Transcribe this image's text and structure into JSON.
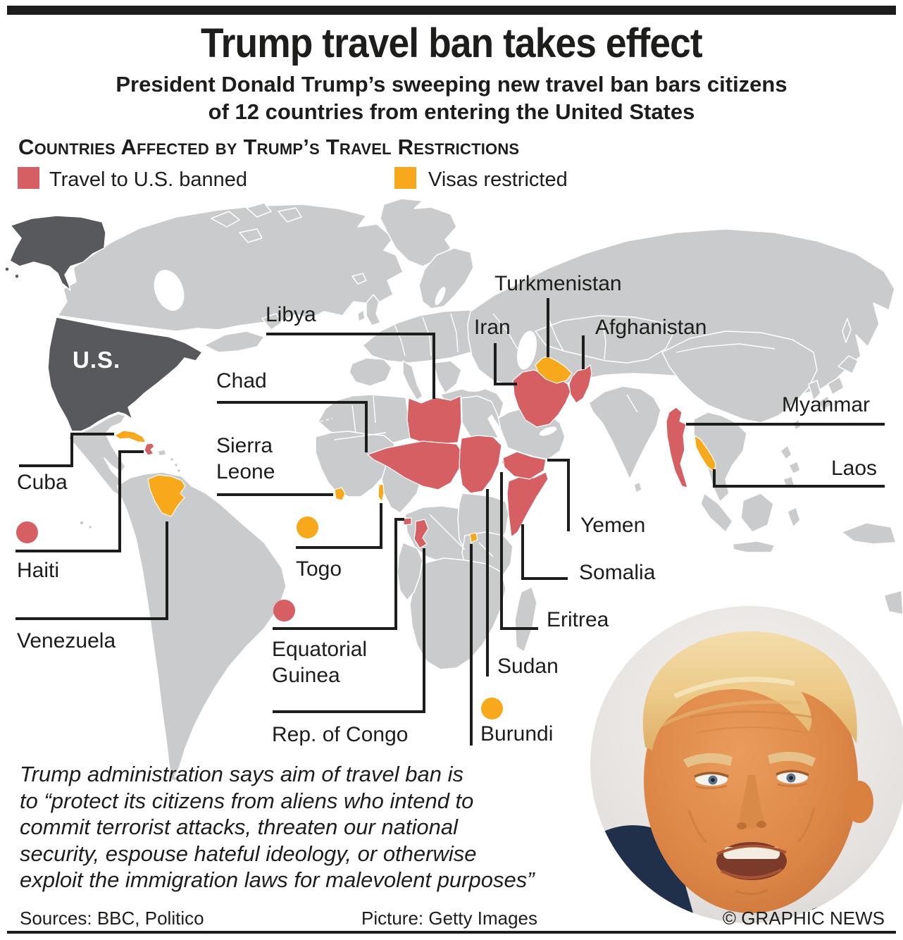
{
  "header": {
    "title": "Trump travel ban takes effect",
    "subtitle_lines": [
      "President Donald Trump’s sweeping new travel ban bars citizens",
      "of 12 countries from entering the United States"
    ],
    "section_title": "Countries Affected by Trump’s Travel Restrictions"
  },
  "legend": {
    "banned": {
      "label": "Travel to U.S. banned",
      "color": "#d65f63"
    },
    "restricted": {
      "label": "Visas restricted",
      "color": "#f7a81b"
    }
  },
  "map": {
    "us_label": "U.S.",
    "colors": {
      "land": "#c9cbcd",
      "us": "#58595d",
      "banned": "#d65f63",
      "restricted": "#f7a81b"
    },
    "labels": [
      {
        "id": "turkmenistan",
        "text": "Turkmenistan",
        "status": "restricted"
      },
      {
        "id": "libya",
        "text": "Libya",
        "status": "banned"
      },
      {
        "id": "iran",
        "text": "Iran",
        "status": "banned"
      },
      {
        "id": "afghanistan",
        "text": "Afghanistan",
        "status": "banned"
      },
      {
        "id": "chad",
        "text": "Chad",
        "status": "banned"
      },
      {
        "id": "myanmar",
        "text": "Myanmar",
        "status": "banned"
      },
      {
        "id": "laos",
        "text": "Laos",
        "status": "restricted"
      },
      {
        "id": "cuba",
        "text": "Cuba",
        "status": "restricted"
      },
      {
        "id": "yemen",
        "text": "Yemen",
        "status": "banned"
      },
      {
        "id": "haiti",
        "text": "Haiti",
        "status": "banned",
        "dot": "banned"
      },
      {
        "id": "togo",
        "text": "Togo",
        "status": "restricted",
        "dot": "restricted"
      },
      {
        "id": "somalia",
        "text": "Somalia",
        "status": "banned"
      },
      {
        "id": "eritrea",
        "text": "Eritrea",
        "status": "banned"
      },
      {
        "id": "venezuela",
        "text": "Venezuela",
        "status": "restricted"
      },
      {
        "id": "equatorial-guinea",
        "text": "Equatorial\nGuinea",
        "status": "banned",
        "dot": "banned"
      },
      {
        "id": "sudan",
        "text": "Sudan",
        "status": "banned"
      },
      {
        "id": "rep-of-congo",
        "text": "Rep. of Congo",
        "status": "banned"
      },
      {
        "id": "burundi",
        "text": "Burundi",
        "status": "restricted",
        "dot": "restricted"
      },
      {
        "id": "sierra-leone",
        "text": "Sierra\nLeone",
        "status": "restricted"
      }
    ]
  },
  "quote_lines": [
    "Trump administration says aim of travel ban is",
    "to “protect its citizens from aliens who intend to",
    "commit terrorist attacks, threaten our national",
    "security, espouse hateful ideology, or otherwise",
    "exploit the immigration laws for malevolent purposes”"
  ],
  "footer": {
    "sources": "Sources: BBC, Politico",
    "picture": "Picture: Getty Images",
    "credit": "© GRAPHIC NEWS"
  }
}
